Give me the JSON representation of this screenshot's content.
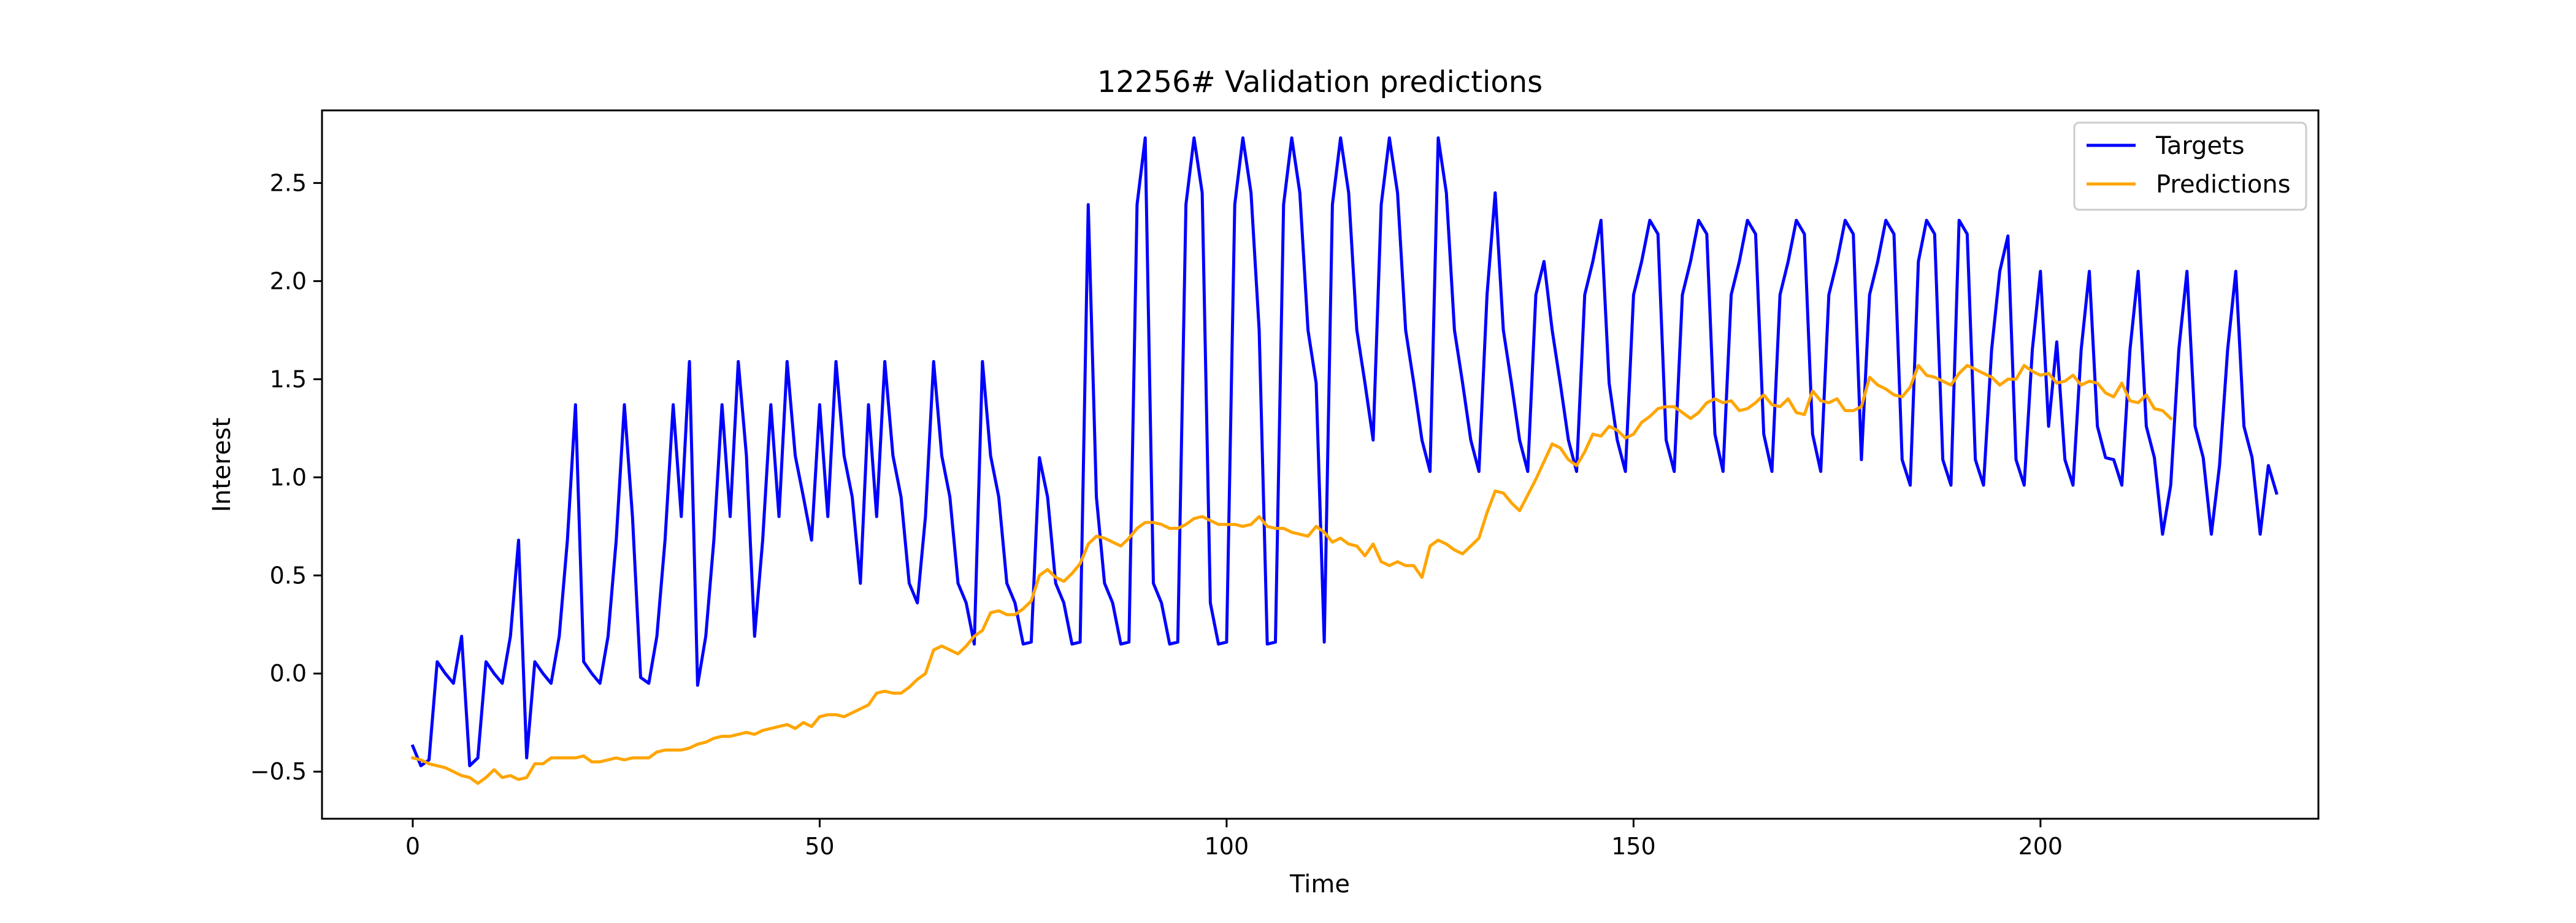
{
  "chart_data": {
    "type": "line",
    "title": "12256# Validation predictions",
    "xlabel": "Time",
    "ylabel": "Interest",
    "xlim": [
      -11.15,
      234.15
    ],
    "ylim": [
      -0.74,
      2.87
    ],
    "xticks": [
      0,
      50,
      100,
      150,
      200
    ],
    "yticks": [
      -0.5,
      0.0,
      0.5,
      1.0,
      1.5,
      2.0,
      2.5
    ],
    "xtick_labels": [
      "0",
      "50",
      "100",
      "150",
      "200"
    ],
    "ytick_labels": [
      "−0.5",
      "0.0",
      "0.5",
      "1.0",
      "1.5",
      "2.0",
      "2.5"
    ],
    "grid": false,
    "legend_position": "top-right",
    "series": [
      {
        "name": "Targets",
        "color": "#0000ff",
        "values": [
          -0.37,
          -0.47,
          -0.44,
          0.06,
          0.0,
          -0.05,
          0.19,
          -0.47,
          -0.43,
          0.06,
          0.0,
          -0.05,
          0.19,
          0.68,
          -0.43,
          0.06,
          0.0,
          -0.05,
          0.19,
          0.68,
          1.37,
          0.06,
          0.0,
          -0.05,
          0.19,
          0.68,
          1.37,
          0.8,
          -0.02,
          -0.05,
          0.19,
          0.68,
          1.37,
          0.8,
          1.59,
          -0.06,
          0.19,
          0.68,
          1.37,
          0.8,
          1.59,
          1.11,
          0.19,
          0.68,
          1.37,
          0.8,
          1.59,
          1.11,
          0.9,
          0.68,
          1.37,
          0.8,
          1.59,
          1.11,
          0.9,
          0.46,
          1.37,
          0.8,
          1.59,
          1.11,
          0.9,
          0.46,
          0.36,
          0.8,
          1.59,
          1.11,
          0.9,
          0.46,
          0.36,
          0.15,
          1.59,
          1.11,
          0.9,
          0.46,
          0.36,
          0.15,
          0.16,
          1.1,
          0.9,
          0.46,
          0.36,
          0.15,
          0.16,
          2.39,
          0.9,
          0.46,
          0.36,
          0.15,
          0.16,
          2.39,
          2.73,
          0.46,
          0.36,
          0.15,
          0.16,
          2.39,
          2.73,
          2.45,
          0.36,
          0.15,
          0.16,
          2.39,
          2.73,
          2.45,
          1.75,
          0.15,
          0.16,
          2.39,
          2.73,
          2.45,
          1.75,
          1.48,
          0.16,
          2.39,
          2.73,
          2.45,
          1.75,
          1.48,
          1.19,
          2.39,
          2.73,
          2.45,
          1.75,
          1.48,
          1.19,
          1.03,
          2.73,
          2.45,
          1.75,
          1.48,
          1.19,
          1.03,
          1.93,
          2.45,
          1.75,
          1.48,
          1.19,
          1.03,
          1.93,
          2.1,
          1.75,
          1.48,
          1.19,
          1.03,
          1.93,
          2.1,
          2.31,
          1.48,
          1.19,
          1.03,
          1.93,
          2.1,
          2.31,
          2.24,
          1.19,
          1.03,
          1.93,
          2.1,
          2.31,
          2.24,
          1.22,
          1.03,
          1.93,
          2.1,
          2.31,
          2.24,
          1.22,
          1.03,
          1.93,
          2.1,
          2.31,
          2.24,
          1.22,
          1.03,
          1.93,
          2.1,
          2.31,
          2.24,
          1.09,
          1.93,
          2.1,
          2.31,
          2.24,
          1.09,
          0.96,
          2.1,
          2.31,
          2.24,
          1.09,
          0.96,
          2.31,
          2.24,
          1.09,
          0.96,
          1.65,
          2.05,
          2.23,
          1.09,
          0.96,
          1.65,
          2.05,
          1.26,
          1.69,
          1.09,
          0.96,
          1.65,
          2.05,
          1.26,
          1.1,
          1.09,
          0.96,
          1.65,
          2.05,
          1.26,
          1.1,
          0.71,
          0.96,
          1.65,
          2.05,
          1.26,
          1.1,
          0.71,
          1.06,
          1.65,
          2.05,
          1.26,
          1.1,
          0.71,
          1.06,
          0.92
        ]
      },
      {
        "name": "Predictions",
        "color": "#ffa500",
        "values": [
          -0.43,
          -0.44,
          -0.46,
          -0.47,
          -0.48,
          -0.5,
          -0.52,
          -0.53,
          -0.56,
          -0.53,
          -0.49,
          -0.53,
          -0.52,
          -0.54,
          -0.53,
          -0.46,
          -0.46,
          -0.43,
          -0.43,
          -0.43,
          -0.43,
          -0.42,
          -0.45,
          -0.45,
          -0.44,
          -0.43,
          -0.44,
          -0.43,
          -0.43,
          -0.43,
          -0.4,
          -0.39,
          -0.39,
          -0.39,
          -0.38,
          -0.36,
          -0.35,
          -0.33,
          -0.32,
          -0.32,
          -0.31,
          -0.3,
          -0.31,
          -0.29,
          -0.28,
          -0.27,
          -0.26,
          -0.28,
          -0.25,
          -0.27,
          -0.22,
          -0.21,
          -0.21,
          -0.22,
          -0.2,
          -0.18,
          -0.16,
          -0.1,
          -0.09,
          -0.1,
          -0.1,
          -0.07,
          -0.03,
          0.0,
          0.12,
          0.14,
          0.12,
          0.1,
          0.14,
          0.19,
          0.22,
          0.31,
          0.32,
          0.3,
          0.3,
          0.33,
          0.37,
          0.5,
          0.53,
          0.49,
          0.47,
          0.51,
          0.56,
          0.66,
          0.7,
          0.69,
          0.67,
          0.65,
          0.69,
          0.74,
          0.77,
          0.77,
          0.76,
          0.74,
          0.74,
          0.76,
          0.79,
          0.8,
          0.78,
          0.76,
          0.76,
          0.76,
          0.75,
          0.76,
          0.8,
          0.75,
          0.74,
          0.74,
          0.72,
          0.71,
          0.7,
          0.75,
          0.72,
          0.67,
          0.69,
          0.66,
          0.65,
          0.6,
          0.66,
          0.57,
          0.55,
          0.57,
          0.55,
          0.55,
          0.49,
          0.65,
          0.68,
          0.66,
          0.63,
          0.61,
          0.65,
          0.69,
          0.82,
          0.93,
          0.92,
          0.87,
          0.83,
          0.91,
          0.99,
          1.08,
          1.17,
          1.15,
          1.09,
          1.06,
          1.13,
          1.22,
          1.21,
          1.26,
          1.24,
          1.2,
          1.22,
          1.28,
          1.31,
          1.35,
          1.36,
          1.36,
          1.33,
          1.3,
          1.33,
          1.38,
          1.4,
          1.38,
          1.39,
          1.34,
          1.35,
          1.38,
          1.42,
          1.37,
          1.36,
          1.4,
          1.33,
          1.32,
          1.44,
          1.39,
          1.38,
          1.4,
          1.34,
          1.34,
          1.36,
          1.51,
          1.47,
          1.45,
          1.42,
          1.41,
          1.46,
          1.57,
          1.52,
          1.51,
          1.49,
          1.47,
          1.53,
          1.57,
          1.55,
          1.53,
          1.51,
          1.47,
          1.5,
          1.5,
          1.57,
          1.54,
          1.52,
          1.53,
          1.48,
          1.49,
          1.52,
          1.47,
          1.49,
          1.48,
          1.43,
          1.41,
          1.48,
          1.39,
          1.38,
          1.42,
          1.35,
          1.34,
          1.3
        ]
      }
    ]
  }
}
